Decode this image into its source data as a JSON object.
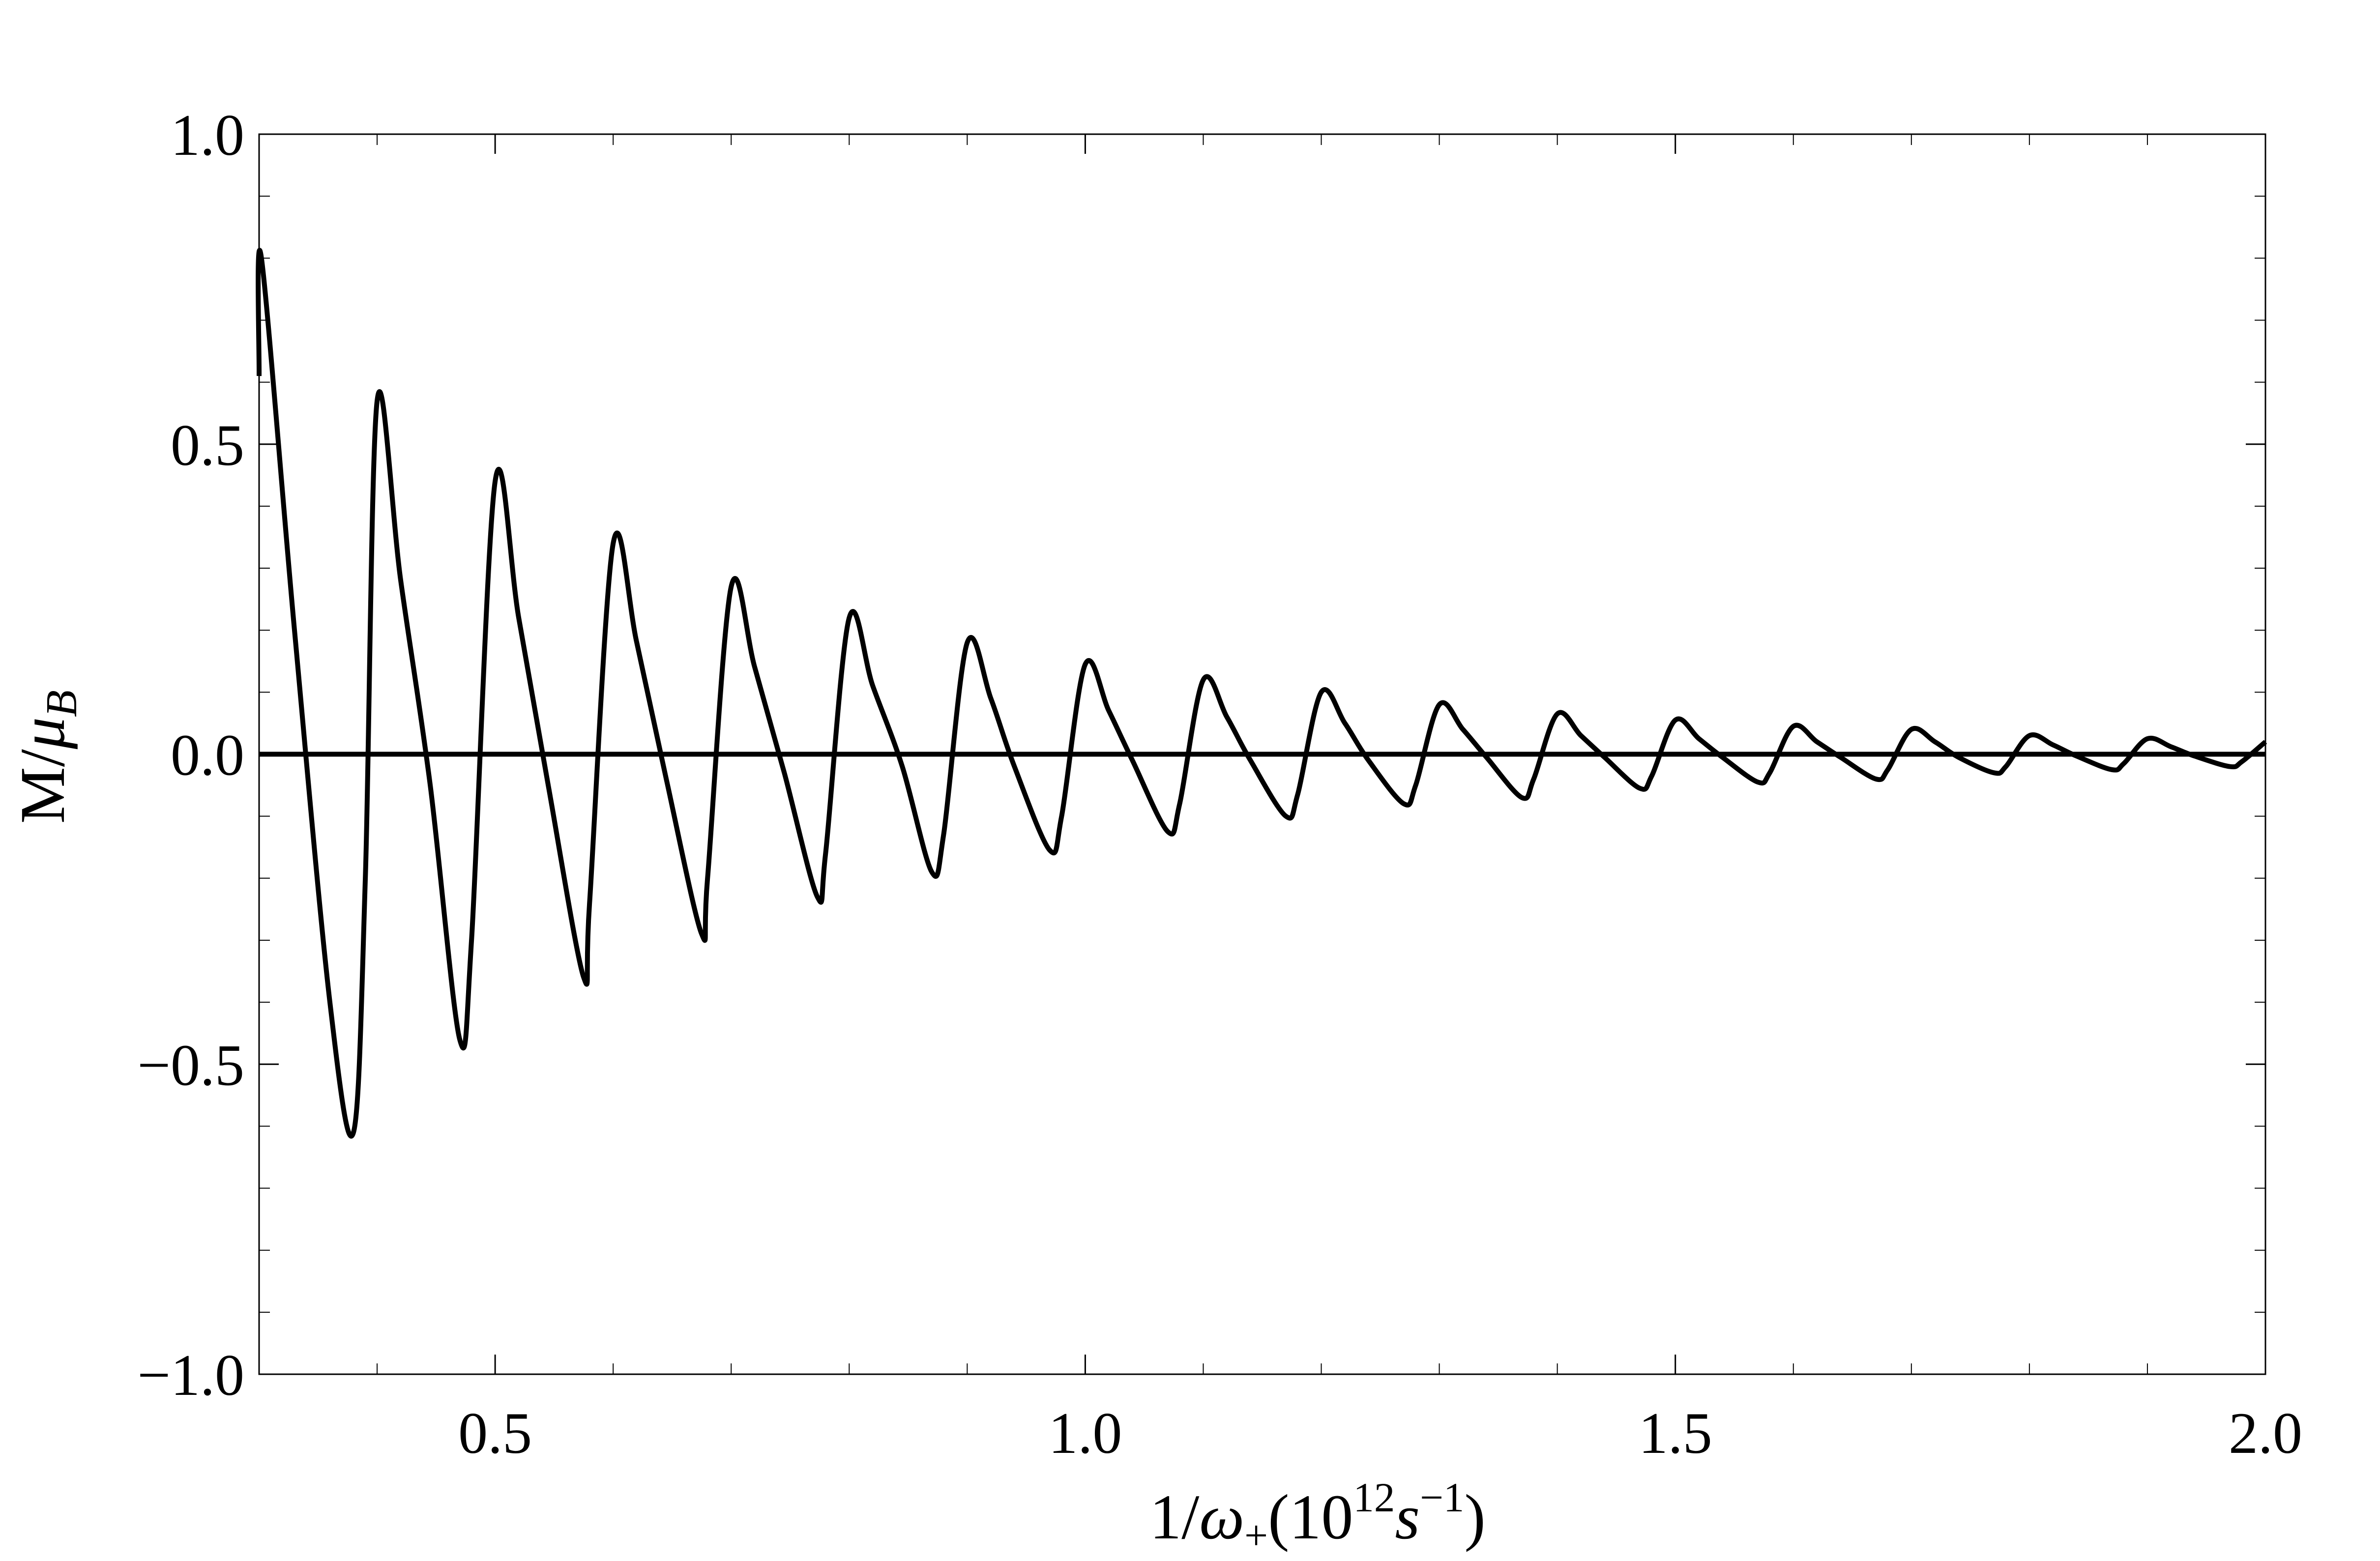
{
  "chart_data": {
    "type": "line",
    "title": "",
    "xlabel": {
      "prefix": "1/",
      "symbol": "ω",
      "subscript": "+",
      "unit_open": "(10",
      "exponent": "12",
      "unit_var": "s",
      "unit_exp": "−1",
      "unit_close": ")"
    },
    "ylabel": {
      "main": "M/",
      "symbol": "μ",
      "subscript": "B"
    },
    "xlim": [
      0.3,
      2.0
    ],
    "ylim": [
      -1.0,
      1.0
    ],
    "xticks": [
      0.5,
      1.0,
      1.5,
      2.0
    ],
    "xtick_labels": [
      "0.5",
      "1.0",
      "1.5",
      "2.0"
    ],
    "yticks": [
      -1.0,
      -0.5,
      0.0,
      0.5,
      1.0
    ],
    "ytick_labels": [
      "−1.0",
      "−0.5",
      "0.0",
      "0.5",
      "1.0"
    ],
    "grid": false,
    "reference_line": {
      "y": 0.0
    },
    "series": [
      {
        "x": [
          0.3,
          0.302,
          0.33,
          0.36,
          0.38,
          0.39,
          0.4,
          0.42,
          0.445,
          0.47,
          0.48,
          0.5,
          0.52,
          0.545,
          0.575,
          0.58,
          0.6,
          0.62,
          0.645,
          0.675,
          0.68,
          0.7,
          0.72,
          0.745,
          0.773,
          0.78,
          0.8,
          0.82,
          0.845,
          0.87,
          0.88,
          0.9,
          0.92,
          0.94,
          0.97,
          0.98,
          1.0,
          1.02,
          1.04,
          1.07,
          1.08,
          1.1,
          1.12,
          1.14,
          1.17,
          1.18,
          1.2,
          1.22,
          1.24,
          1.27,
          1.28,
          1.3,
          1.32,
          1.34,
          1.37,
          1.38,
          1.4,
          1.42,
          1.44,
          1.47,
          1.48,
          1.5,
          1.52,
          1.54,
          1.57,
          1.58,
          1.6,
          1.62,
          1.64,
          1.67,
          1.68,
          1.7,
          1.72,
          1.74,
          1.77,
          1.78,
          1.8,
          1.82,
          1.84,
          1.87,
          1.88,
          1.9,
          1.92,
          1.94,
          1.97,
          1.98,
          2.0
        ],
        "y": [
          0.61,
          0.8,
          0.2,
          -0.4,
          -0.61,
          -0.2,
          0.57,
          0.28,
          -0.05,
          -0.46,
          -0.3,
          0.44,
          0.22,
          -0.05,
          -0.36,
          -0.24,
          0.34,
          0.18,
          -0.04,
          -0.29,
          -0.2,
          0.27,
          0.14,
          -0.03,
          -0.23,
          -0.16,
          0.22,
          0.11,
          -0.02,
          -0.19,
          -0.13,
          0.18,
          0.09,
          -0.02,
          -0.155,
          -0.1,
          0.145,
          0.07,
          -0.01,
          -0.125,
          -0.08,
          0.12,
          0.06,
          -0.01,
          -0.1,
          -0.065,
          0.1,
          0.05,
          -0.01,
          -0.08,
          -0.05,
          0.08,
          0.04,
          -0.005,
          -0.07,
          -0.04,
          0.065,
          0.03,
          -0.005,
          -0.055,
          -0.035,
          0.055,
          0.025,
          -0.005,
          -0.045,
          -0.03,
          0.045,
          0.02,
          -0.005,
          -0.04,
          -0.025,
          0.04,
          0.02,
          -0.005,
          -0.03,
          -0.02,
          0.03,
          0.015,
          -0.003,
          -0.025,
          -0.015,
          0.025,
          0.012,
          -0.003,
          -0.02,
          -0.012,
          0.02
        ]
      }
    ]
  }
}
